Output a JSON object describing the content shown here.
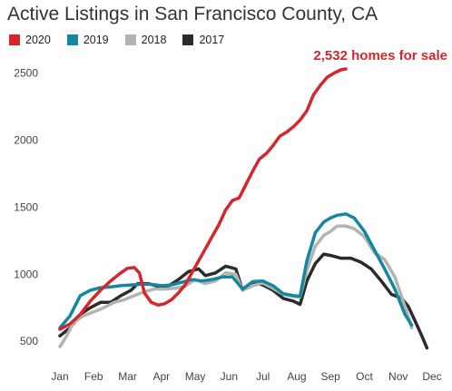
{
  "chart_data": {
    "type": "line",
    "title": "Active Listings in San Francisco County, CA",
    "xlabel": "",
    "ylabel": "",
    "x_tick_labels": [
      "Jan",
      "Feb",
      "Mar",
      "Apr",
      "May",
      "Jun",
      "Jul",
      "Aug",
      "Sep",
      "Oct",
      "Nov",
      "Dec"
    ],
    "y_ticks": [
      500,
      1000,
      1500,
      2000,
      2500
    ],
    "y_tick_labels": [
      "500",
      "1000",
      "1500",
      "2000",
      "2500"
    ],
    "xlim": [
      1,
      12
    ],
    "ylim": [
      420,
      2640
    ],
    "grid": false,
    "legend_position": "top-left",
    "annotation": {
      "text": "2,532 homes for sale",
      "series": "2020"
    },
    "series": [
      {
        "name": "2020",
        "color": "#d4262c",
        "points": [
          [
            1.0,
            590
          ],
          [
            1.3,
            630
          ],
          [
            1.6,
            700
          ],
          [
            1.9,
            800
          ],
          [
            2.2,
            880
          ],
          [
            2.5,
            950
          ],
          [
            2.8,
            1010
          ],
          [
            3.0,
            1045
          ],
          [
            3.2,
            1050
          ],
          [
            3.35,
            1010
          ],
          [
            3.5,
            860
          ],
          [
            3.7,
            790
          ],
          [
            3.9,
            770
          ],
          [
            4.1,
            780
          ],
          [
            4.3,
            810
          ],
          [
            4.5,
            860
          ],
          [
            4.7,
            920
          ],
          [
            4.9,
            1010
          ],
          [
            5.1,
            1100
          ],
          [
            5.3,
            1190
          ],
          [
            5.5,
            1280
          ],
          [
            5.7,
            1370
          ],
          [
            5.9,
            1480
          ],
          [
            6.1,
            1550
          ],
          [
            6.3,
            1570
          ],
          [
            6.5,
            1670
          ],
          [
            6.7,
            1770
          ],
          [
            6.9,
            1860
          ],
          [
            7.1,
            1900
          ],
          [
            7.3,
            1960
          ],
          [
            7.5,
            2030
          ],
          [
            7.7,
            2060
          ],
          [
            7.9,
            2100
          ],
          [
            8.1,
            2150
          ],
          [
            8.3,
            2220
          ],
          [
            8.5,
            2340
          ],
          [
            8.7,
            2410
          ],
          [
            8.9,
            2470
          ],
          [
            9.1,
            2500
          ],
          [
            9.3,
            2525
          ],
          [
            9.45,
            2532
          ]
        ]
      },
      {
        "name": "2019",
        "color": "#13879e",
        "points": [
          [
            1.0,
            600
          ],
          [
            1.3,
            690
          ],
          [
            1.6,
            840
          ],
          [
            1.9,
            880
          ],
          [
            2.2,
            900
          ],
          [
            2.5,
            905
          ],
          [
            2.8,
            915
          ],
          [
            3.1,
            920
          ],
          [
            3.4,
            925
          ],
          [
            3.7,
            925
          ],
          [
            4.0,
            915
          ],
          [
            4.3,
            920
          ],
          [
            4.6,
            940
          ],
          [
            4.9,
            960
          ],
          [
            5.2,
            950
          ],
          [
            5.5,
            960
          ],
          [
            5.8,
            980
          ],
          [
            6.1,
            980
          ],
          [
            6.4,
            890
          ],
          [
            6.7,
            945
          ],
          [
            7.0,
            950
          ],
          [
            7.3,
            915
          ],
          [
            7.6,
            855
          ],
          [
            7.9,
            840
          ],
          [
            8.1,
            835
          ],
          [
            8.3,
            1100
          ],
          [
            8.55,
            1310
          ],
          [
            8.8,
            1390
          ],
          [
            9.0,
            1420
          ],
          [
            9.2,
            1440
          ],
          [
            9.45,
            1450
          ],
          [
            9.7,
            1420
          ],
          [
            10.0,
            1320
          ],
          [
            10.3,
            1180
          ],
          [
            10.6,
            1040
          ],
          [
            10.9,
            890
          ],
          [
            11.2,
            700
          ],
          [
            11.4,
            620
          ]
        ]
      },
      {
        "name": "2018",
        "color": "#b3b3b3",
        "points": [
          [
            1.0,
            460
          ],
          [
            1.2,
            540
          ],
          [
            1.4,
            640
          ],
          [
            1.7,
            690
          ],
          [
            2.0,
            720
          ],
          [
            2.3,
            750
          ],
          [
            2.6,
            790
          ],
          [
            2.9,
            810
          ],
          [
            3.2,
            840
          ],
          [
            3.5,
            870
          ],
          [
            3.8,
            890
          ],
          [
            4.1,
            890
          ],
          [
            4.4,
            895
          ],
          [
            4.7,
            910
          ],
          [
            5.0,
            960
          ],
          [
            5.3,
            930
          ],
          [
            5.6,
            950
          ],
          [
            5.9,
            1010
          ],
          [
            6.2,
            1000
          ],
          [
            6.4,
            880
          ],
          [
            6.7,
            915
          ],
          [
            7.0,
            935
          ],
          [
            7.3,
            895
          ],
          [
            7.6,
            850
          ],
          [
            7.9,
            835
          ],
          [
            8.1,
            830
          ],
          [
            8.3,
            1030
          ],
          [
            8.55,
            1210
          ],
          [
            8.8,
            1290
          ],
          [
            9.0,
            1320
          ],
          [
            9.2,
            1360
          ],
          [
            9.45,
            1360
          ],
          [
            9.7,
            1340
          ],
          [
            10.0,
            1280
          ],
          [
            10.3,
            1160
          ],
          [
            10.6,
            1110
          ],
          [
            10.9,
            980
          ],
          [
            11.2,
            760
          ],
          [
            11.4,
            600
          ]
        ]
      },
      {
        "name": "2017",
        "color": "#2b2b2b",
        "points": [
          [
            1.0,
            540
          ],
          [
            1.3,
            600
          ],
          [
            1.6,
            700
          ],
          [
            1.9,
            750
          ],
          [
            2.2,
            790
          ],
          [
            2.5,
            790
          ],
          [
            2.8,
            840
          ],
          [
            3.1,
            880
          ],
          [
            3.3,
            930
          ],
          [
            3.6,
            930
          ],
          [
            3.9,
            910
          ],
          [
            4.2,
            910
          ],
          [
            4.5,
            960
          ],
          [
            4.8,
            1020
          ],
          [
            5.1,
            1040
          ],
          [
            5.3,
            990
          ],
          [
            5.6,
            1010
          ],
          [
            5.9,
            1060
          ],
          [
            6.2,
            1040
          ],
          [
            6.4,
            880
          ],
          [
            6.7,
            940
          ],
          [
            7.0,
            920
          ],
          [
            7.3,
            880
          ],
          [
            7.6,
            820
          ],
          [
            7.9,
            800
          ],
          [
            8.1,
            775
          ],
          [
            8.3,
            950
          ],
          [
            8.55,
            1080
          ],
          [
            8.8,
            1150
          ],
          [
            9.0,
            1140
          ],
          [
            9.3,
            1120
          ],
          [
            9.6,
            1120
          ],
          [
            9.9,
            1090
          ],
          [
            10.2,
            1040
          ],
          [
            10.5,
            950
          ],
          [
            10.8,
            850
          ],
          [
            11.1,
            820
          ],
          [
            11.3,
            760
          ],
          [
            11.5,
            650
          ],
          [
            11.7,
            540
          ],
          [
            11.85,
            450
          ]
        ]
      }
    ]
  }
}
